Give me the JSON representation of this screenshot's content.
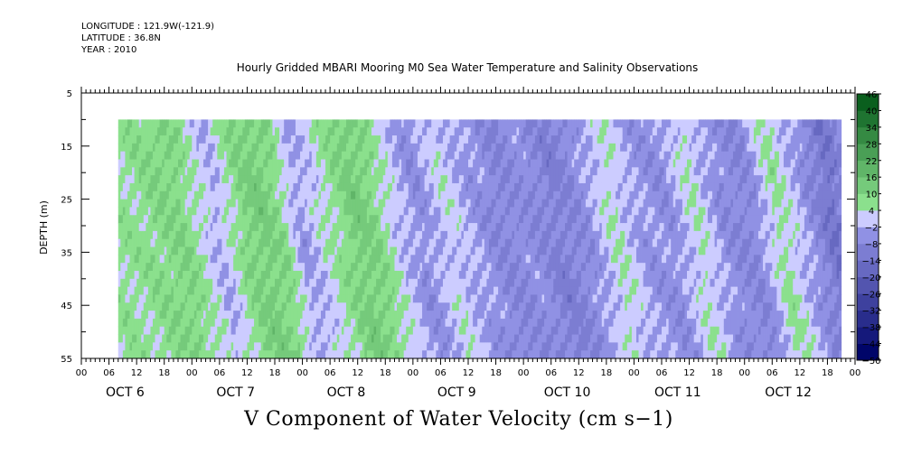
{
  "meta": {
    "longitude": "LONGITUDE : 121.9W(-121.9)",
    "latitude": "LATITUDE : 36.8N",
    "year": "YEAR : 2010"
  },
  "chart_data": {
    "type": "heatmap",
    "title": "Hourly Gridded MBARI Mooring M0 Sea Water Temperature and Salinity Observations",
    "xlabel": "V Component of Water Velocity (cm s−1)",
    "ylabel": "DEPTH (m)",
    "ylim": [
      55,
      5
    ],
    "y_ticks": [
      5,
      15,
      25,
      35,
      45,
      55
    ],
    "data_depth_range": [
      10,
      55
    ],
    "hour_tick_labels": [
      "00",
      "06",
      "12",
      "18",
      "00",
      "06",
      "12",
      "18",
      "00",
      "06",
      "12",
      "18",
      "00",
      "06",
      "12",
      "18",
      "00",
      "06",
      "12",
      "18",
      "00",
      "06",
      "12",
      "18",
      "00",
      "06",
      "12",
      "18",
      "00"
    ],
    "day_labels": [
      "OCT  6",
      "OCT  7",
      "OCT  8",
      "OCT  9",
      "OCT 10",
      "OCT 11",
      "OCT 12"
    ],
    "data_start_hour": 8,
    "data_end_hour": 165,
    "colorbar": {
      "levels": [
        -50,
        -44,
        -38,
        -32,
        -26,
        -20,
        -14,
        -8,
        -2,
        4,
        10,
        16,
        22,
        28,
        34,
        40,
        46
      ],
      "labels": [
        "46",
        "40",
        "34",
        "28",
        "22",
        "16",
        "10",
        "4",
        "−2",
        "−8",
        "−14",
        "−20",
        "−26",
        "−32",
        "−38",
        "−44",
        "−50"
      ]
    },
    "v_by_time": [
      {
        "hour": 8,
        "v": 6
      },
      {
        "hour": 12,
        "v": 8
      },
      {
        "hour": 18,
        "v": 10
      },
      {
        "hour": 22,
        "v": 4
      },
      {
        "hour": 26,
        "v": -2
      },
      {
        "hour": 32,
        "v": 10
      },
      {
        "hour": 36,
        "v": 12
      },
      {
        "hour": 40,
        "v": 8
      },
      {
        "hour": 44,
        "v": -4
      },
      {
        "hour": 50,
        "v": 4
      },
      {
        "hour": 56,
        "v": 12
      },
      {
        "hour": 60,
        "v": 10
      },
      {
        "hour": 64,
        "v": 2
      },
      {
        "hour": 70,
        "v": -6
      },
      {
        "hour": 76,
        "v": 2
      },
      {
        "hour": 82,
        "v": -4
      },
      {
        "hour": 88,
        "v": -8
      },
      {
        "hour": 94,
        "v": -6
      },
      {
        "hour": 100,
        "v": -10
      },
      {
        "hour": 106,
        "v": -6
      },
      {
        "hour": 112,
        "v": 4
      },
      {
        "hour": 118,
        "v": -4
      },
      {
        "hour": 124,
        "v": -6
      },
      {
        "hour": 130,
        "v": 4
      },
      {
        "hour": 136,
        "v": -6
      },
      {
        "hour": 142,
        "v": -8
      },
      {
        "hour": 148,
        "v": 6
      },
      {
        "hour": 154,
        "v": -4
      },
      {
        "hour": 160,
        "v": -14
      },
      {
        "hour": 165,
        "v": -4
      }
    ]
  }
}
